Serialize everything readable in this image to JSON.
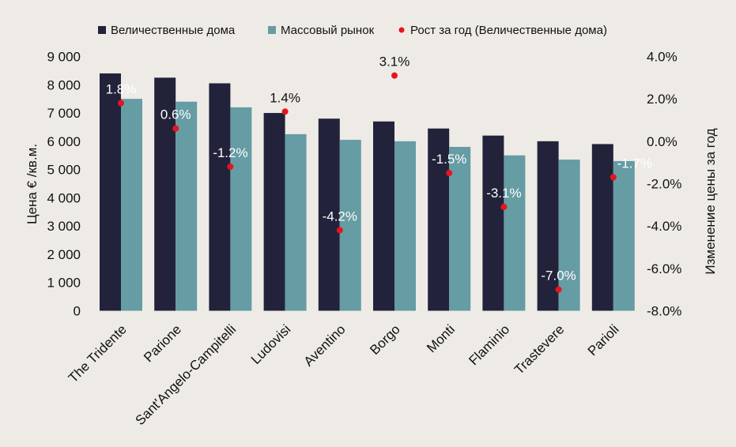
{
  "chart_data": {
    "type": "bar",
    "categories": [
      "The Tridente",
      "Parione",
      "Sant'Angelo-Campitelli",
      "Ludovisi",
      "Aventino",
      "Borgo",
      "Monti",
      "Flaminio",
      "Trastevere",
      "Parioli"
    ],
    "series": [
      {
        "name": "Величественные дома",
        "kind": "bar",
        "axis": "left",
        "color": "#22233a",
        "values": [
          8400,
          8250,
          8050,
          7000,
          6800,
          6700,
          6450,
          6200,
          6000,
          5900
        ]
      },
      {
        "name": "Массовый рынок",
        "kind": "bar",
        "axis": "left",
        "color": "#669ca4",
        "values": [
          7500,
          7400,
          7200,
          6250,
          6050,
          6000,
          5800,
          5500,
          5350,
          5300
        ]
      },
      {
        "name": "Рост за год (Величественные дома)",
        "kind": "scatter",
        "axis": "right",
        "color": "#e8141c",
        "values": [
          1.8,
          0.6,
          -1.2,
          1.4,
          -4.2,
          3.1,
          -1.5,
          -3.1,
          -7.0,
          -1.7
        ],
        "labels": [
          "1.8%",
          "0.6%",
          "-1.2%",
          "1.4%",
          "-4.2%",
          "3.1%",
          "-1.5%",
          "-3.1%",
          "-7.0%",
          "-1.7%"
        ]
      }
    ],
    "ylabel": "Цена € /кв.м.",
    "y2label": "Изменение цены за год",
    "ylim": [
      0,
      9000
    ],
    "y2lim": [
      -8.0,
      4.0
    ],
    "yticks": [
      0,
      1000,
      2000,
      3000,
      4000,
      5000,
      6000,
      7000,
      8000,
      9000
    ],
    "yticklabels": [
      "0",
      "1 000",
      "2 000",
      "3 000",
      "4 000",
      "5 000",
      "6 000",
      "7 000",
      "8 000",
      "9 000"
    ],
    "y2ticks": [
      -8,
      -6,
      -4,
      -2,
      0,
      2,
      4
    ],
    "y2ticklabels": [
      "-8.0%",
      "-6.0%",
      "-4.0%",
      "-2.0%",
      "0.0%",
      "2.0%",
      "4.0%"
    ],
    "legend_position": "top",
    "grid": false
  },
  "colors": {
    "background": "#eeebe7",
    "grand_homes": "#22233a",
    "mass_market": "#669ca4",
    "growth_dot": "#e8141c",
    "text": "#111111",
    "label_on_bar": "#ffffff"
  }
}
